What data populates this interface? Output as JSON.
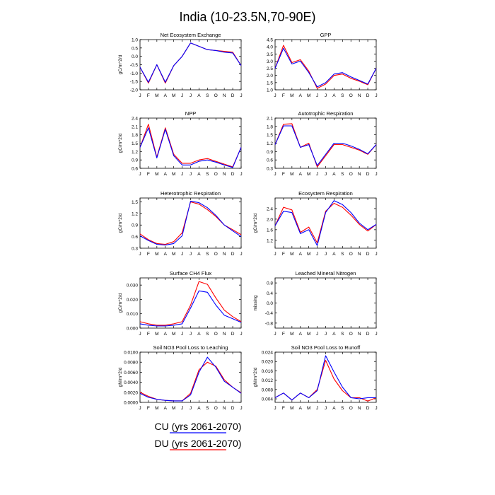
{
  "page": {
    "title": "India (10-23.5N,70-90E)"
  },
  "colors": {
    "CU": "#0000ff",
    "DU": "#ff0000",
    "axis": "#000000"
  },
  "legend": [
    {
      "series": "CU",
      "label": "CU (yrs 2061-2070)"
    },
    {
      "series": "DU",
      "label": "DU (yrs 2061-2070)"
    }
  ],
  "month_labels": [
    "J",
    "F",
    "M",
    "A",
    "M",
    "J",
    "J",
    "A",
    "S",
    "O",
    "N",
    "D",
    "J"
  ],
  "chart_data": [
    {
      "type": "line",
      "title": "Net Ecosystem Exchange",
      "ylabel": "gC/m^2/d",
      "ylim": [
        -2.0,
        1.0
      ],
      "yticks": [
        -2.0,
        -1.5,
        -1.0,
        -0.5,
        0.0,
        0.5,
        1.0
      ],
      "ytick_labels": [
        "-2.0",
        "-1.5",
        "-1.0",
        "-0.5",
        "0.0",
        "0.5",
        "1.0"
      ],
      "series": [
        {
          "name": "CU",
          "values": [
            -0.65,
            -1.55,
            -0.5,
            -1.55,
            -0.55,
            0.0,
            0.8,
            0.6,
            0.4,
            0.35,
            0.25,
            0.2,
            -0.55
          ]
        },
        {
          "name": "DU",
          "values": [
            -0.65,
            -1.6,
            -0.5,
            -1.6,
            -0.55,
            0.0,
            0.8,
            0.6,
            0.4,
            0.35,
            0.3,
            0.25,
            -0.55
          ]
        }
      ]
    },
    {
      "type": "line",
      "title": "GPP",
      "ylabel": "",
      "ylim": [
        1.0,
        4.5
      ],
      "yticks": [
        1.0,
        1.5,
        2.0,
        2.5,
        3.0,
        3.5,
        4.0,
        4.5
      ],
      "ytick_labels": [
        "1.0",
        "1.5",
        "2.0",
        "2.5",
        "3.0",
        "3.5",
        "4.0",
        "4.5"
      ],
      "series": [
        {
          "name": "CU",
          "values": [
            2.5,
            3.9,
            2.8,
            3.0,
            2.2,
            1.2,
            1.5,
            2.1,
            2.2,
            1.9,
            1.65,
            1.4,
            2.5
          ]
        },
        {
          "name": "DU",
          "values": [
            2.5,
            4.1,
            2.9,
            3.1,
            2.3,
            1.1,
            1.4,
            2.0,
            2.1,
            1.8,
            1.6,
            1.35,
            2.5
          ]
        }
      ]
    },
    {
      "type": "line",
      "title": "NPP",
      "ylabel": "gC/m^2/d",
      "ylim": [
        0.6,
        2.4
      ],
      "yticks": [
        0.6,
        0.9,
        1.2,
        1.5,
        1.8,
        2.1,
        2.4
      ],
      "ytick_labels": [
        "0.6",
        "0.9",
        "1.2",
        "1.5",
        "1.8",
        "2.1",
        "2.4"
      ],
      "series": [
        {
          "name": "CU",
          "values": [
            1.35,
            2.05,
            0.97,
            2.0,
            1.05,
            0.72,
            0.72,
            0.85,
            0.9,
            0.82,
            0.72,
            0.63,
            1.35
          ]
        },
        {
          "name": "DU",
          "values": [
            1.35,
            2.18,
            1.0,
            2.05,
            1.1,
            0.78,
            0.78,
            0.9,
            0.95,
            0.85,
            0.75,
            0.65,
            1.35
          ]
        }
      ]
    },
    {
      "type": "line",
      "title": "Autotrophic Respiration",
      "ylabel": "",
      "ylim": [
        0.3,
        2.1
      ],
      "yticks": [
        0.3,
        0.6,
        0.9,
        1.2,
        1.5,
        1.8,
        2.1
      ],
      "ytick_labels": [
        "0.3",
        "0.6",
        "0.9",
        "1.2",
        "1.5",
        "1.8",
        "2.1"
      ],
      "series": [
        {
          "name": "CU",
          "values": [
            1.15,
            1.82,
            1.82,
            1.05,
            1.15,
            0.4,
            0.8,
            1.2,
            1.2,
            1.1,
            0.98,
            0.82,
            1.15
          ]
        },
        {
          "name": "DU",
          "values": [
            1.15,
            1.88,
            1.9,
            1.05,
            1.2,
            0.35,
            0.75,
            1.15,
            1.15,
            1.05,
            0.95,
            0.8,
            1.15
          ]
        }
      ]
    },
    {
      "type": "line",
      "title": "Heterotrophic Respiration",
      "ylabel": "gC/m^2/d",
      "ylim": [
        0.3,
        1.6
      ],
      "yticks": [
        0.3,
        0.6,
        0.9,
        1.2,
        1.5
      ],
      "ytick_labels": [
        "0.3",
        "0.6",
        "0.9",
        "1.2",
        "1.5"
      ],
      "series": [
        {
          "name": "CU",
          "values": [
            0.62,
            0.5,
            0.4,
            0.38,
            0.42,
            0.62,
            1.52,
            1.48,
            1.35,
            1.15,
            0.9,
            0.75,
            0.6
          ]
        },
        {
          "name": "DU",
          "values": [
            0.67,
            0.52,
            0.42,
            0.4,
            0.47,
            0.7,
            1.5,
            1.44,
            1.3,
            1.12,
            0.9,
            0.78,
            0.65
          ]
        }
      ]
    },
    {
      "type": "line",
      "title": "Ecosystem Respiration",
      "ylabel": "gC/m^2/d",
      "ylim": [
        0.9,
        2.8
      ],
      "yticks": [
        1.2,
        1.6,
        2.0,
        2.4
      ],
      "ytick_labels": [
        "1.2",
        "1.6",
        "2.0",
        "2.4"
      ],
      "series": [
        {
          "name": "CU",
          "values": [
            1.75,
            2.3,
            2.25,
            1.45,
            1.6,
            1.0,
            2.25,
            2.7,
            2.55,
            2.25,
            1.85,
            1.6,
            1.8
          ]
        },
        {
          "name": "DU",
          "values": [
            1.75,
            2.45,
            2.35,
            1.5,
            1.7,
            1.1,
            2.3,
            2.6,
            2.45,
            2.15,
            1.8,
            1.55,
            1.8
          ]
        }
      ]
    },
    {
      "type": "line",
      "title": "Surface CH4 Flux",
      "ylabel": "gC/m^2/d",
      "ylim": [
        0.0,
        0.035
      ],
      "yticks": [
        0.0,
        0.01,
        0.02,
        0.03
      ],
      "ytick_labels": [
        "0.000",
        "0.010",
        "0.020",
        "0.030"
      ],
      "series": [
        {
          "name": "CU",
          "values": [
            0.003,
            0.002,
            0.0015,
            0.0015,
            0.002,
            0.003,
            0.014,
            0.026,
            0.025,
            0.016,
            0.009,
            0.0065,
            0.004
          ]
        },
        {
          "name": "DU",
          "values": [
            0.0045,
            0.003,
            0.002,
            0.002,
            0.003,
            0.0045,
            0.016,
            0.0325,
            0.0305,
            0.021,
            0.0125,
            0.008,
            0.0045
          ]
        }
      ]
    },
    {
      "type": "line",
      "title": "Leached Mineral Nitrogen",
      "ylabel": "missing",
      "ylim": [
        -1.0,
        1.0
      ],
      "yticks": [
        -0.8,
        -0.4,
        0.0,
        0.4,
        0.8
      ],
      "ytick_labels": [
        "-0.8",
        "-0.4",
        "0.0",
        "0.4",
        "0.8"
      ],
      "series": []
    },
    {
      "type": "line",
      "title": "Soil NO3 Pool Loss to Leaching",
      "ylabel": "gN/m^2/d",
      "ylim": [
        0.0,
        0.01
      ],
      "yticks": [
        0.0,
        0.002,
        0.004,
        0.006,
        0.008,
        0.01
      ],
      "ytick_labels": [
        "0.0000",
        "0.0020",
        "0.0040",
        "0.0060",
        "0.0080",
        "0.0100"
      ],
      "series": [
        {
          "name": "CU",
          "values": [
            0.0018,
            0.001,
            0.0006,
            0.0004,
            0.0003,
            0.0003,
            0.0015,
            0.006,
            0.009,
            0.007,
            0.0042,
            0.003,
            0.0018
          ]
        },
        {
          "name": "DU",
          "values": [
            0.002,
            0.0012,
            0.0006,
            0.0004,
            0.0003,
            0.0003,
            0.0018,
            0.0065,
            0.008,
            0.0072,
            0.0045,
            0.003,
            0.0019
          ]
        }
      ]
    },
    {
      "type": "line",
      "title": "Soil NO3 Pool Loss to Runoff",
      "ylabel": "gN/m^2/d",
      "ylim": [
        0.0025,
        0.024
      ],
      "yticks": [
        0.004,
        0.008,
        0.012,
        0.016,
        0.02,
        0.024
      ],
      "ytick_labels": [
        "0.004",
        "0.008",
        "0.012",
        "0.016",
        "0.020",
        "0.024"
      ],
      "series": [
        {
          "name": "CU",
          "values": [
            0.0045,
            0.0065,
            0.0035,
            0.0065,
            0.0045,
            0.0075,
            0.0225,
            0.0155,
            0.009,
            0.0045,
            0.004,
            0.0045,
            0.0045
          ]
        },
        {
          "name": "DU",
          "values": [
            0.0045,
            0.0065,
            0.0035,
            0.0065,
            0.0045,
            0.008,
            0.0205,
            0.0125,
            0.0075,
            0.0045,
            0.0045,
            0.003,
            0.0045
          ]
        }
      ]
    }
  ]
}
